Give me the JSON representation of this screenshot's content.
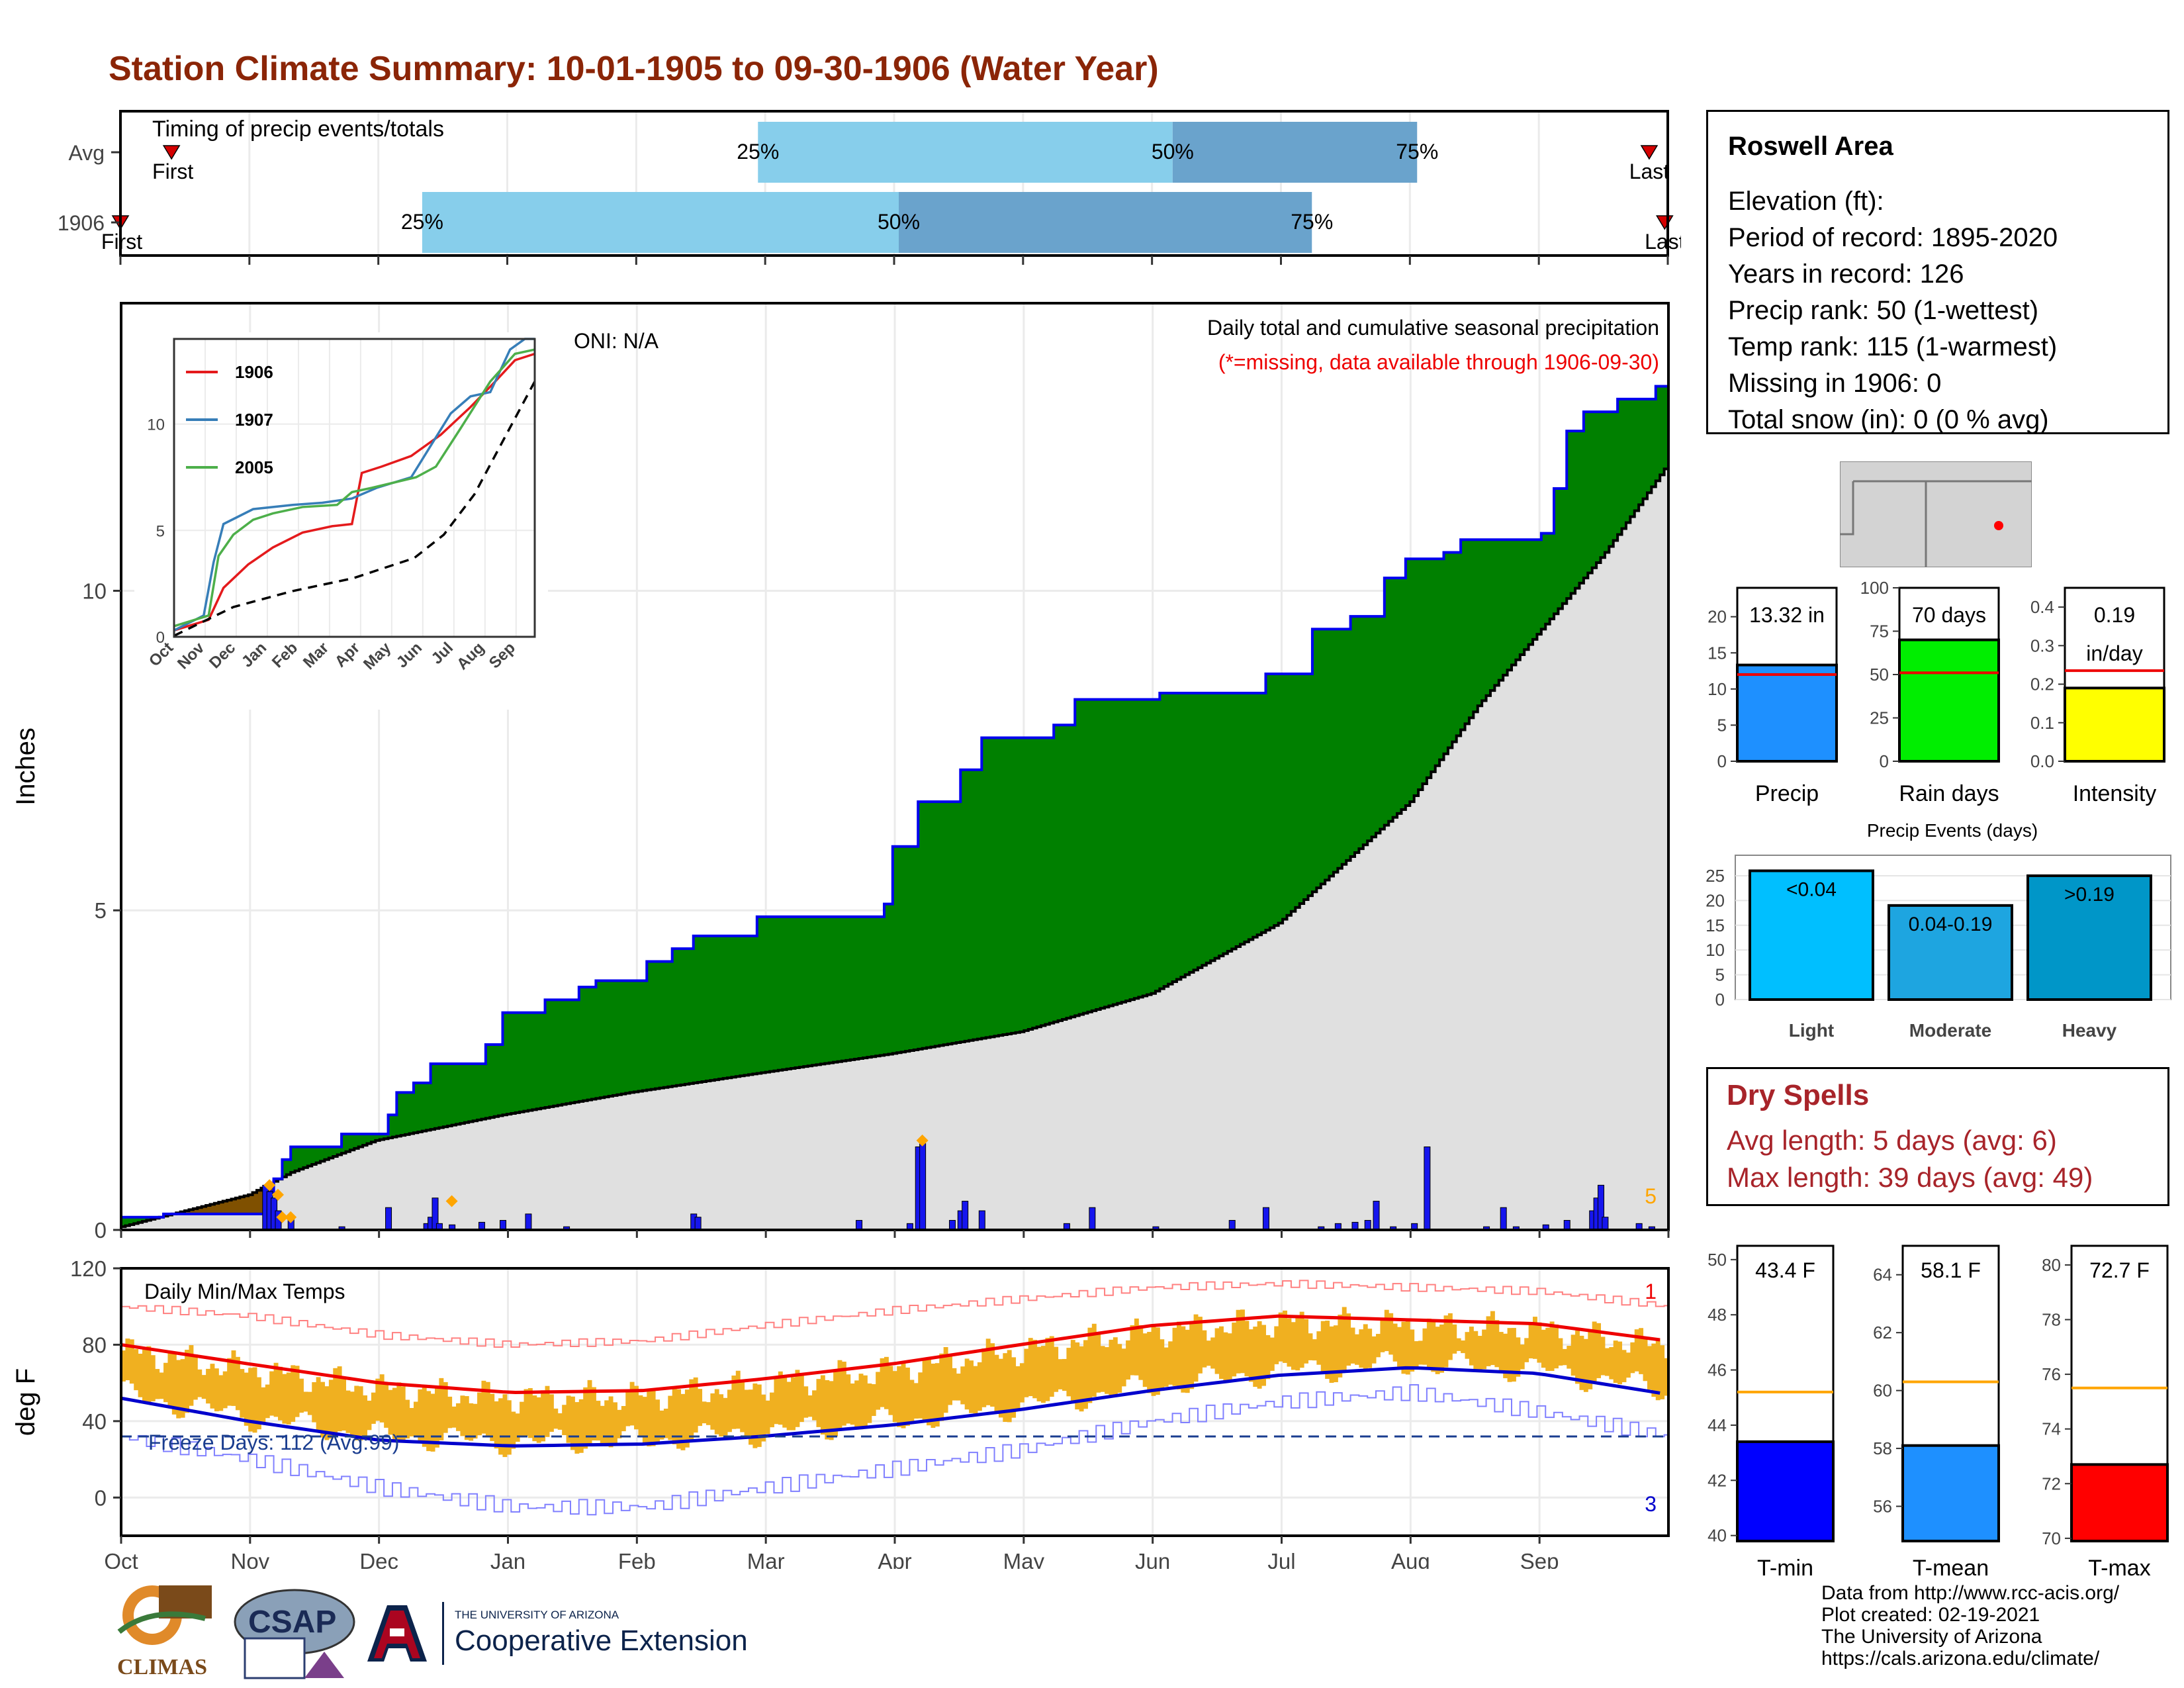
{
  "title": "Station Climate Summary: 10-01-1905 to 09-30-1906 (Water Year)",
  "timing": {
    "label": "Timing of precip events/totals",
    "rows": [
      {
        "name": "Avg",
        "first": 0.033,
        "last": 0.988,
        "q25": 0.412,
        "q50": 0.68,
        "q75": 0.838,
        "first_label": "First",
        "last_label": "Last"
      },
      {
        "name": "1906",
        "first": 0.0,
        "last": 0.998,
        "q25": 0.195,
        "q50": 0.503,
        "q75": 0.77,
        "first_label": "First",
        "last_label": "Last"
      }
    ],
    "pct_labels": [
      "25%",
      "50%",
      "75%"
    ],
    "colors": {
      "light": "#87ceeb",
      "dark": "#6aa3cc",
      "marker": "#d40000"
    }
  },
  "chart_data": [
    {
      "type": "area",
      "name": "cumulative_precip",
      "ylabel": "Inches",
      "ylim": [
        0,
        14.5
      ],
      "yticks": [
        0,
        5,
        10
      ],
      "months": [
        "Oct",
        "Nov",
        "Dec",
        "Jan",
        "Feb",
        "Mar",
        "Apr",
        "May",
        "Jun",
        "Jul",
        "Aug",
        "Sep"
      ],
      "annotation_title": "Daily total and cumulative seasonal precipitation",
      "annotation_missing": "(*=missing, data available through 1906-09-30)",
      "oni": "ONI: N/A",
      "corner_label": "5",
      "cumulative_1906": [
        [
          0,
          0.2
        ],
        [
          10,
          0.25
        ],
        [
          33,
          0.25
        ],
        [
          34,
          0.35
        ],
        [
          35,
          0.6
        ],
        [
          36,
          0.8
        ],
        [
          38,
          1.1
        ],
        [
          40,
          1.3
        ],
        [
          52,
          1.5
        ],
        [
          63,
          1.8
        ],
        [
          65,
          2.15
        ],
        [
          69,
          2.3
        ],
        [
          73,
          2.6
        ],
        [
          86,
          2.9
        ],
        [
          90,
          3.4
        ],
        [
          100,
          3.6
        ],
        [
          108,
          3.8
        ],
        [
          112,
          3.9
        ],
        [
          124,
          4.2
        ],
        [
          130,
          4.4
        ],
        [
          135,
          4.6
        ],
        [
          150,
          4.9
        ],
        [
          178,
          4.9
        ],
        [
          180,
          5.1
        ],
        [
          182,
          6.0
        ],
        [
          188,
          6.7
        ],
        [
          196,
          6.7
        ],
        [
          198,
          7.2
        ],
        [
          203,
          7.7
        ],
        [
          220,
          7.9
        ],
        [
          225,
          8.3
        ],
        [
          245,
          8.4
        ],
        [
          262,
          8.4
        ],
        [
          270,
          8.7
        ],
        [
          275,
          8.7
        ],
        [
          281,
          9.4
        ],
        [
          290,
          9.6
        ],
        [
          298,
          10.2
        ],
        [
          303,
          10.5
        ],
        [
          312,
          10.6
        ],
        [
          316,
          10.8
        ],
        [
          335,
          10.9
        ],
        [
          338,
          11.6
        ],
        [
          341,
          12.5
        ],
        [
          345,
          12.8
        ],
        [
          353,
          13.0
        ],
        [
          362,
          13.2
        ],
        [
          365,
          13.32
        ]
      ],
      "cumulative_avg": [
        [
          0,
          0.05
        ],
        [
          30,
          0.55
        ],
        [
          40,
          0.9
        ],
        [
          60,
          1.4
        ],
        [
          90,
          1.8
        ],
        [
          120,
          2.15
        ],
        [
          150,
          2.45
        ],
        [
          181,
          2.75
        ],
        [
          212,
          3.1
        ],
        [
          243,
          3.7
        ],
        [
          273,
          4.8
        ],
        [
          304,
          6.7
        ],
        [
          320,
          8.2
        ],
        [
          335,
          9.4
        ],
        [
          350,
          10.6
        ],
        [
          365,
          12.0
        ]
      ],
      "daily_precip": [
        [
          34,
          0.7
        ],
        [
          35,
          0.6
        ],
        [
          36,
          0.5
        ],
        [
          37,
          0.3
        ],
        [
          40,
          0.2
        ],
        [
          52,
          0.05
        ],
        [
          63,
          0.35
        ],
        [
          72,
          0.1
        ],
        [
          73,
          0.2
        ],
        [
          74,
          0.5
        ],
        [
          75,
          0.1
        ],
        [
          78,
          0.08
        ],
        [
          85,
          0.12
        ],
        [
          90,
          0.15
        ],
        [
          96,
          0.25
        ],
        [
          105,
          0.05
        ],
        [
          135,
          0.25
        ],
        [
          136,
          0.2
        ],
        [
          174,
          0.15
        ],
        [
          186,
          0.1
        ],
        [
          188,
          1.3
        ],
        [
          189,
          1.35
        ],
        [
          196,
          0.15
        ],
        [
          198,
          0.3
        ],
        [
          199,
          0.45
        ],
        [
          203,
          0.3
        ],
        [
          223,
          0.1
        ],
        [
          229,
          0.35
        ],
        [
          244,
          0.05
        ],
        [
          262,
          0.15
        ],
        [
          270,
          0.35
        ],
        [
          283,
          0.05
        ],
        [
          287,
          0.1
        ],
        [
          291,
          0.12
        ],
        [
          294,
          0.15
        ],
        [
          296,
          0.45
        ],
        [
          300,
          0.05
        ],
        [
          305,
          0.1
        ],
        [
          308,
          1.3
        ],
        [
          322,
          0.05
        ],
        [
          326,
          0.35
        ],
        [
          329,
          0.05
        ],
        [
          336,
          0.08
        ],
        [
          341,
          0.15
        ],
        [
          347,
          0.3
        ],
        [
          348,
          0.5
        ],
        [
          349,
          0.7
        ],
        [
          350,
          0.2
        ],
        [
          358,
          0.1
        ],
        [
          361,
          0.05
        ]
      ],
      "missing_markers": [
        [
          35,
          0.7
        ],
        [
          37,
          0.55
        ],
        [
          38,
          0.2
        ],
        [
          40,
          0.2
        ],
        [
          78,
          0.45
        ],
        [
          189,
          1.4
        ]
      ],
      "colors": {
        "above": "#008000",
        "below": "#7f5000",
        "avg_fill": "#e0e0e0",
        "line": "#0000ee",
        "bars": "#1616ee",
        "marker": "#ffa500"
      }
    },
    {
      "type": "line",
      "name": "inset_cumulative",
      "xticklabels": [
        "Oct",
        "Nov",
        "Dec",
        "Jan",
        "Feb",
        "Mar",
        "Apr",
        "May",
        "Jun",
        "Jul",
        "Aug",
        "Sep"
      ],
      "yticks": [
        0,
        5,
        10
      ],
      "ylim": [
        0,
        14
      ],
      "series": [
        {
          "name": "1906",
          "color": "#e41a1c",
          "points": [
            [
              0,
              0.3
            ],
            [
              35,
              0.8
            ],
            [
              50,
              2.3
            ],
            [
              75,
              3.4
            ],
            [
              100,
              4.2
            ],
            [
              130,
              4.9
            ],
            [
              160,
              5.2
            ],
            [
              180,
              5.3
            ],
            [
              190,
              7.7
            ],
            [
              210,
              8.0
            ],
            [
              240,
              8.5
            ],
            [
              270,
              9.5
            ],
            [
              300,
              10.8
            ],
            [
              325,
              12.0
            ],
            [
              345,
              13.0
            ],
            [
              365,
              13.3
            ]
          ]
        },
        {
          "name": "1907",
          "color": "#377eb8",
          "points": [
            [
              0,
              0.3
            ],
            [
              30,
              1.0
            ],
            [
              40,
              3.5
            ],
            [
              50,
              5.3
            ],
            [
              80,
              6.0
            ],
            [
              120,
              6.2
            ],
            [
              150,
              6.3
            ],
            [
              180,
              6.5
            ],
            [
              205,
              7.0
            ],
            [
              240,
              7.5
            ],
            [
              260,
              9.0
            ],
            [
              280,
              10.5
            ],
            [
              300,
              11.3
            ],
            [
              320,
              11.5
            ],
            [
              340,
              13.5
            ],
            [
              355,
              14.5
            ],
            [
              365,
              14.5
            ]
          ]
        },
        {
          "name": "2005",
          "color": "#4daf4a",
          "points": [
            [
              0,
              0.5
            ],
            [
              35,
              1.0
            ],
            [
              45,
              3.8
            ],
            [
              60,
              4.8
            ],
            [
              80,
              5.5
            ],
            [
              100,
              5.8
            ],
            [
              130,
              6.1
            ],
            [
              165,
              6.2
            ],
            [
              180,
              6.8
            ],
            [
              200,
              7.0
            ],
            [
              245,
              7.5
            ],
            [
              265,
              8.0
            ],
            [
              290,
              9.8
            ],
            [
              320,
              12.0
            ],
            [
              345,
              13.3
            ],
            [
              365,
              13.5
            ]
          ]
        },
        {
          "name": "avg",
          "color": "#000000",
          "dashed": true,
          "points": [
            [
              0,
              0.05
            ],
            [
              60,
              1.4
            ],
            [
              120,
              2.15
            ],
            [
              181,
              2.75
            ],
            [
              243,
              3.7
            ],
            [
              273,
              4.8
            ],
            [
              304,
              6.7
            ],
            [
              335,
              9.4
            ],
            [
              365,
              12.0
            ]
          ]
        }
      ]
    },
    {
      "type": "line",
      "name": "daily_temps",
      "title": "Daily Min/Max Temps",
      "ylabel": "deg F",
      "ylim": [
        -20,
        120
      ],
      "yticks": [
        0,
        40,
        80,
        120
      ],
      "freeze_label": "Freeze Days: 112 (Avg:99)",
      "freeze_line": 32,
      "record_high_count": "1",
      "record_low_count": "3",
      "avg_max": [
        [
          0,
          80
        ],
        [
          30,
          70
        ],
        [
          61,
          60
        ],
        [
          92,
          55
        ],
        [
          123,
          56
        ],
        [
          151,
          62
        ],
        [
          182,
          70
        ],
        [
          212,
          80
        ],
        [
          243,
          90
        ],
        [
          273,
          95
        ],
        [
          304,
          93
        ],
        [
          334,
          91
        ],
        [
          365,
          82
        ]
      ],
      "avg_min": [
        [
          0,
          52
        ],
        [
          30,
          40
        ],
        [
          61,
          30
        ],
        [
          92,
          27
        ],
        [
          123,
          28
        ],
        [
          151,
          32
        ],
        [
          182,
          38
        ],
        [
          212,
          46
        ],
        [
          243,
          56
        ],
        [
          273,
          64
        ],
        [
          304,
          68
        ],
        [
          334,
          65
        ],
        [
          365,
          54
        ]
      ],
      "record_max": [
        [
          0,
          100
        ],
        [
          30,
          95
        ],
        [
          61,
          85
        ],
        [
          92,
          80
        ],
        [
          123,
          82
        ],
        [
          151,
          90
        ],
        [
          182,
          98
        ],
        [
          212,
          104
        ],
        [
          243,
          110
        ],
        [
          273,
          112
        ],
        [
          304,
          110
        ],
        [
          334,
          108
        ],
        [
          365,
          100
        ]
      ],
      "record_min": [
        [
          0,
          32
        ],
        [
          30,
          20
        ],
        [
          61,
          5
        ],
        [
          92,
          -5
        ],
        [
          123,
          -5
        ],
        [
          151,
          5
        ],
        [
          182,
          15
        ],
        [
          212,
          25
        ],
        [
          243,
          40
        ],
        [
          273,
          50
        ],
        [
          304,
          55
        ],
        [
          334,
          45
        ],
        [
          365,
          32
        ]
      ],
      "colors": {
        "bars": "#f0b020",
        "avg_max": "#ee0000",
        "avg_min": "#0000cc",
        "rec_max": "#ff8080",
        "rec_min": "#8080ff",
        "freeze": "#1a3d8f"
      }
    },
    {
      "type": "bar",
      "name": "precip_total",
      "value_label": "13.32 in",
      "category": "Precip",
      "value": 13.32,
      "avg": 12.0,
      "ylim": [
        0,
        24
      ],
      "yticks": [
        0,
        5,
        10,
        15,
        20
      ],
      "color": "#1e90ff"
    },
    {
      "type": "bar",
      "name": "rain_days",
      "value_label": "70 days",
      "category": "Rain days",
      "value": 70,
      "avg": 51,
      "ylim": [
        0,
        100
      ],
      "yticks": [
        0,
        25,
        50,
        75,
        100
      ],
      "color": "#00ee00"
    },
    {
      "type": "bar",
      "name": "intensity",
      "value_label": "0.19",
      "unit_label": "in/day",
      "category": "Intensity",
      "value": 0.19,
      "avg": 0.235,
      "ylim": [
        0,
        0.45
      ],
      "yticks": [
        0.0,
        0.1,
        0.2,
        0.3,
        0.4
      ],
      "color": "#ffff00"
    },
    {
      "type": "bar",
      "name": "precip_events",
      "title": "Precip Events (days)",
      "categories": [
        "Light",
        "Moderate",
        "Heavy"
      ],
      "labels": [
        "<0.04",
        "0.04-0.19",
        ">0.19"
      ],
      "values": [
        26,
        19,
        25
      ],
      "ylim": [
        0,
        27
      ],
      "yticks": [
        0,
        5,
        10,
        15,
        20,
        25
      ],
      "colors": [
        "#00bfff",
        "#1ea5e0",
        "#0096c8"
      ]
    },
    {
      "type": "bar",
      "name": "t_min",
      "value_label": "43.4 F",
      "category": "T-min",
      "value": 43.4,
      "avg": 45.2,
      "ylim": [
        39.8,
        50.5
      ],
      "yticks": [
        40,
        42,
        44,
        46,
        48,
        50
      ],
      "color": "#0000ff"
    },
    {
      "type": "bar",
      "name": "t_mean",
      "value_label": "58.1 F",
      "category": "T-mean",
      "value": 58.1,
      "avg": 60.3,
      "ylim": [
        54.8,
        65
      ],
      "yticks": [
        56,
        58,
        60,
        62,
        64
      ],
      "color": "#1e90ff"
    },
    {
      "type": "bar",
      "name": "t_max",
      "value_label": "72.7 F",
      "category": "T-max",
      "value": 72.7,
      "avg": 75.5,
      "ylim": [
        69.9,
        80.7
      ],
      "yticks": [
        70,
        72,
        74,
        76,
        78,
        80
      ],
      "color": "#ff0000"
    }
  ],
  "station": {
    "name": "Roswell Area",
    "lines": [
      "Elevation (ft):",
      "Period of record: 1895-2020",
      "Years in record: 126",
      "Precip rank: 50 (1-wettest)",
      "Temp rank: 115 (1-warmest)",
      "Missing in 1906: 0",
      "Total snow (in): 0 (0 % avg)"
    ]
  },
  "dry_spells": {
    "title": "Dry Spells",
    "avg_line": "Avg length: 5 days (avg: 6)",
    "max_line": "Max length: 39 days (avg: 49)"
  },
  "credits": [
    "Data from http://www.rcc-acis.org/",
    "Plot created: 02-19-2021",
    "The University of Arizona",
    "https://cals.arizona.edu/climate/"
  ],
  "logos": {
    "climas": "CLIMAS",
    "csap": "CSAP",
    "ua_small": "THE UNIVERSITY OF ARIZONA",
    "ua_large": "Cooperative Extension"
  }
}
